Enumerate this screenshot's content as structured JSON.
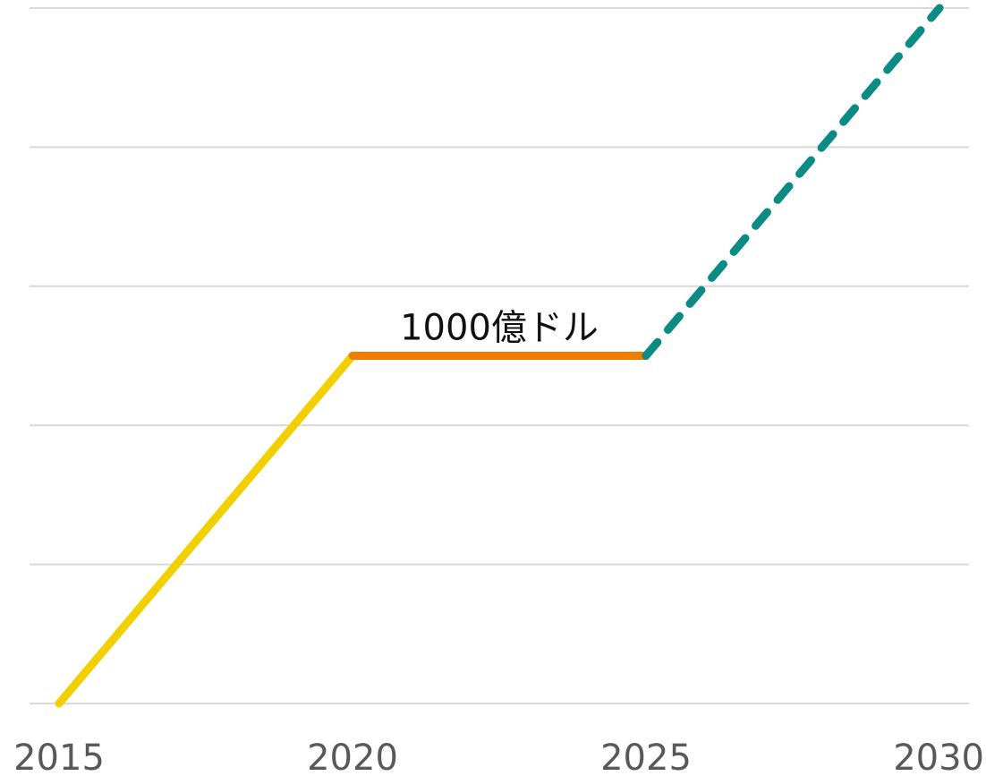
{
  "chart_data": {
    "type": "line",
    "title": "",
    "xlabel": "",
    "ylabel": "",
    "x_ticks": [
      "2015",
      "2020",
      "2025",
      "2030"
    ],
    "xlim": [
      2015,
      2030
    ],
    "ylim": [
      0,
      2000
    ],
    "y_gridlines": [
      0,
      400,
      800,
      1200,
      1600,
      2000
    ],
    "grid": true,
    "legend": "none",
    "series": [
      {
        "points": [
          {
            "x": 2015,
            "y": 0
          },
          {
            "x": 2020,
            "y": 1000
          }
        ],
        "color": "#f2d000",
        "style": "solid"
      },
      {
        "points": [
          {
            "x": 2020,
            "y": 1000
          },
          {
            "x": 2025,
            "y": 1000
          }
        ],
        "color": "#ee7d00",
        "style": "solid"
      },
      {
        "points": [
          {
            "x": 2025,
            "y": 1000
          },
          {
            "x": 2030,
            "y": 2000
          }
        ],
        "color": "#0a8c85",
        "style": "dashed"
      }
    ],
    "annotations": [
      {
        "text": "1000億ドル",
        "x": 2022.5,
        "y": 1000
      }
    ]
  }
}
